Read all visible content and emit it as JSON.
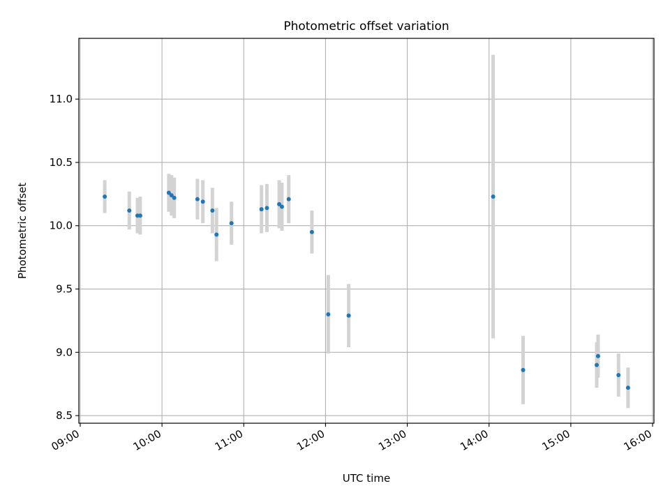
{
  "chart_data": {
    "type": "scatter",
    "title": "Photometric offset variation",
    "xlabel": "UTC time",
    "ylabel": "Photometric offset",
    "x_ticks": [
      "09:00",
      "10:00",
      "11:00",
      "12:00",
      "13:00",
      "14:00",
      "15:00",
      "16:00"
    ],
    "y_ticks": [
      "8.5",
      "9.0",
      "9.5",
      "10.0",
      "10.5",
      "11.0"
    ],
    "xlim": [
      "08:59",
      "16:01"
    ],
    "ylim": [
      8.44,
      11.48
    ],
    "grid": true,
    "colors": {
      "marker": "#1f77b4",
      "errorbar": "#d3d3d3",
      "grid": "#b0b0b0"
    },
    "points": [
      {
        "time": "09:18",
        "y": 10.23,
        "yerr": 0.13
      },
      {
        "time": "09:36",
        "y": 10.12,
        "yerr": 0.15
      },
      {
        "time": "09:42",
        "y": 10.08,
        "yerr": 0.14
      },
      {
        "time": "09:44",
        "y": 10.08,
        "yerr": 0.15
      },
      {
        "time": "10:05",
        "y": 10.26,
        "yerr": 0.15
      },
      {
        "time": "10:07",
        "y": 10.24,
        "yerr": 0.16
      },
      {
        "time": "10:09",
        "y": 10.22,
        "yerr": 0.16
      },
      {
        "time": "10:26",
        "y": 10.21,
        "yerr": 0.16
      },
      {
        "time": "10:30",
        "y": 10.19,
        "yerr": 0.17
      },
      {
        "time": "10:37",
        "y": 10.12,
        "yerr": 0.18
      },
      {
        "time": "10:40",
        "y": 9.93,
        "yerr": 0.21
      },
      {
        "time": "10:51",
        "y": 10.02,
        "yerr": 0.17
      },
      {
        "time": "11:13",
        "y": 10.13,
        "yerr": 0.19
      },
      {
        "time": "11:17",
        "y": 10.14,
        "yerr": 0.19
      },
      {
        "time": "11:26",
        "y": 10.17,
        "yerr": 0.19
      },
      {
        "time": "11:28",
        "y": 10.15,
        "yerr": 0.19
      },
      {
        "time": "11:33",
        "y": 10.21,
        "yerr": 0.19
      },
      {
        "time": "11:50",
        "y": 9.95,
        "yerr": 0.17
      },
      {
        "time": "12:02",
        "y": 9.3,
        "yerr": 0.31
      },
      {
        "time": "12:17",
        "y": 9.29,
        "yerr": 0.25
      },
      {
        "time": "14:03",
        "y": 10.23,
        "yerr": 1.12
      },
      {
        "time": "14:25",
        "y": 8.86,
        "yerr": 0.27
      },
      {
        "time": "15:19",
        "y": 8.9,
        "yerr": 0.18
      },
      {
        "time": "15:20",
        "y": 8.97,
        "yerr": 0.17
      },
      {
        "time": "15:35",
        "y": 8.82,
        "yerr": 0.17
      },
      {
        "time": "15:42",
        "y": 8.72,
        "yerr": 0.16
      }
    ]
  }
}
